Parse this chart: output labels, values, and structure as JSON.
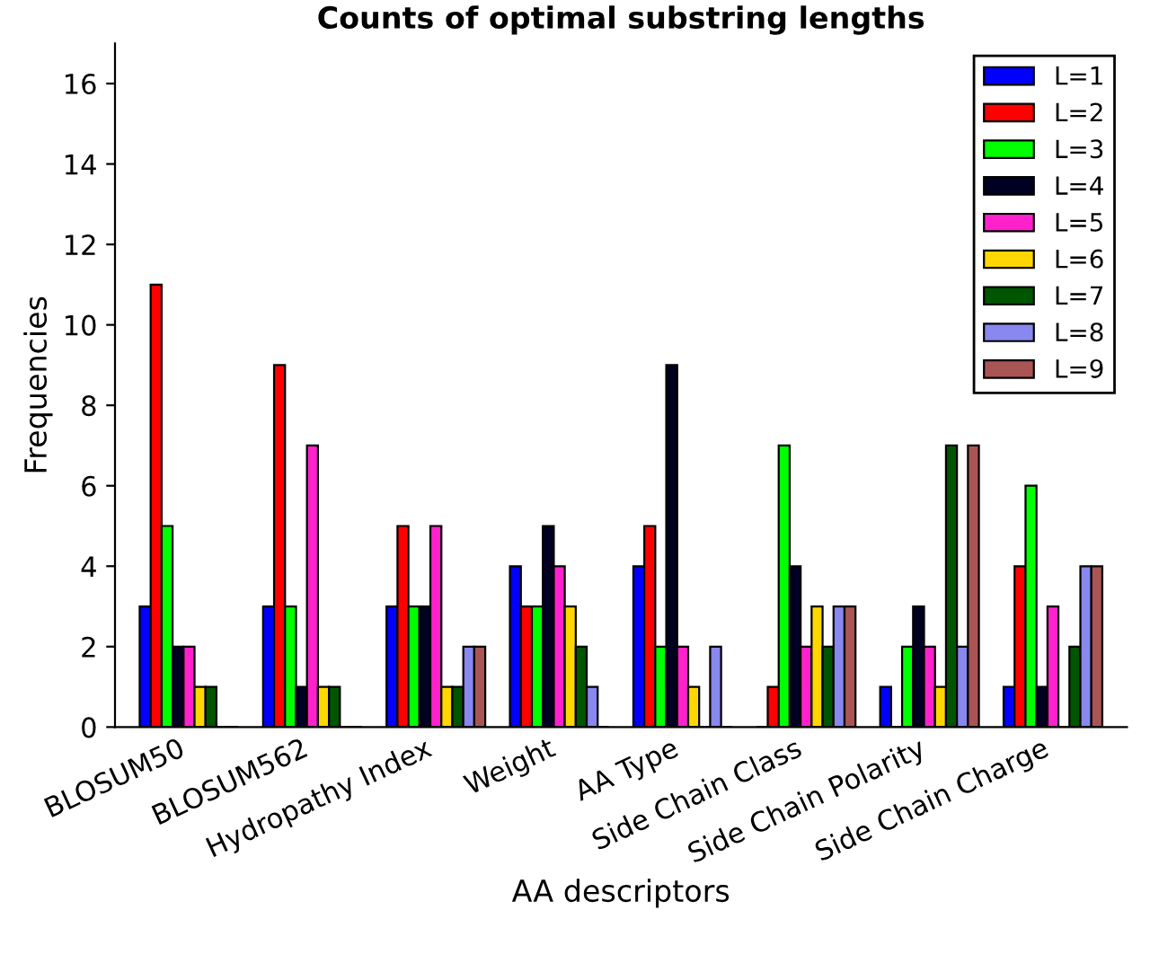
{
  "chart_data": {
    "type": "bar",
    "title": "Counts of optimal substring lengths",
    "xlabel": "AA descriptors",
    "ylabel": "Frequencies",
    "categories": [
      "BLOSUM50",
      "BLOSUM562",
      "Hydropathy Index",
      "Weight",
      "AA Type",
      "Side Chain Class",
      "Side Chain Polarity",
      "Side Chain Charge"
    ],
    "series": [
      {
        "name": "L=1",
        "color": "#0000ff",
        "values": [
          3,
          3,
          3,
          4,
          4,
          0,
          1,
          1
        ]
      },
      {
        "name": "L=2",
        "color": "#ff0000",
        "values": [
          11,
          9,
          5,
          3,
          5,
          1,
          0,
          4
        ]
      },
      {
        "name": "L=3",
        "color": "#00ff00",
        "values": [
          5,
          3,
          3,
          3,
          2,
          7,
          2,
          6
        ]
      },
      {
        "name": "L=4",
        "color": "#000022",
        "values": [
          2,
          1,
          3,
          5,
          9,
          4,
          3,
          1
        ]
      },
      {
        "name": "L=5",
        "color": "#ff22cc",
        "values": [
          2,
          7,
          5,
          4,
          2,
          2,
          2,
          3
        ]
      },
      {
        "name": "L=6",
        "color": "#ffd700",
        "values": [
          1,
          1,
          1,
          3,
          1,
          3,
          1,
          0
        ]
      },
      {
        "name": "L=7",
        "color": "#005500",
        "values": [
          1,
          1,
          1,
          2,
          0,
          2,
          7,
          2
        ]
      },
      {
        "name": "L=8",
        "color": "#8888ee",
        "values": [
          0,
          0,
          2,
          1,
          2,
          3,
          2,
          4
        ]
      },
      {
        "name": "L=9",
        "color": "#aa5555",
        "values": [
          0,
          0,
          2,
          0,
          0,
          3,
          7,
          4
        ]
      }
    ],
    "ylim": [
      0,
      17
    ],
    "yticks": [
      0,
      2,
      4,
      6,
      8,
      10,
      12,
      14,
      16
    ],
    "grid": false,
    "legend": "top right"
  }
}
